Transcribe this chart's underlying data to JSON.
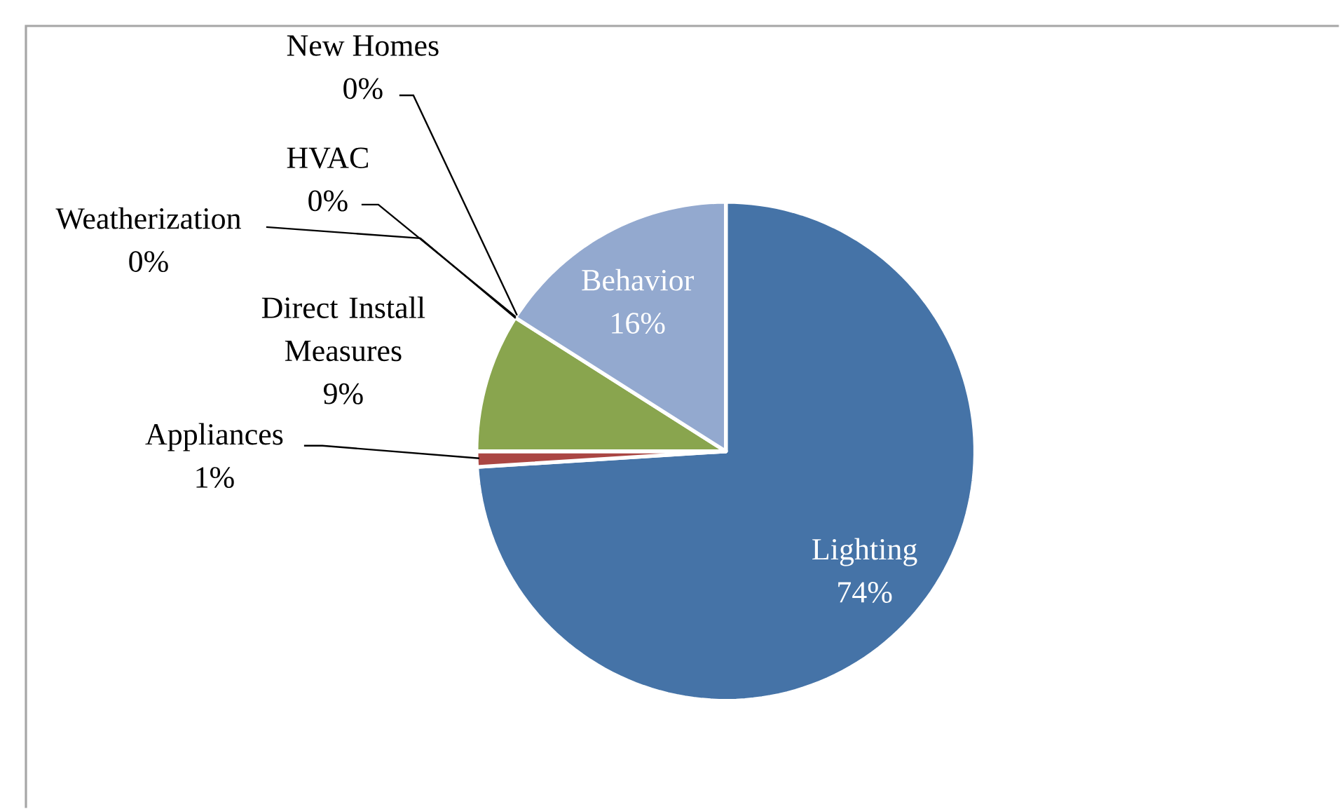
{
  "chart_data": {
    "type": "pie",
    "categories": [
      "Lighting",
      "Appliances",
      "Direct Install Measures",
      "Weatherization",
      "HVAC",
      "New Homes",
      "Behavior"
    ],
    "values": [
      74,
      1,
      9,
      0,
      0,
      0,
      16
    ],
    "colors": [
      "#4573a7",
      "#aa4643",
      "#89a54e",
      "#71588f",
      "#4198af",
      "#db843d",
      "#93a9cf"
    ],
    "value_labels": [
      "74%",
      "1%",
      "9%",
      "0%",
      "0%",
      "0%",
      "16%"
    ]
  }
}
